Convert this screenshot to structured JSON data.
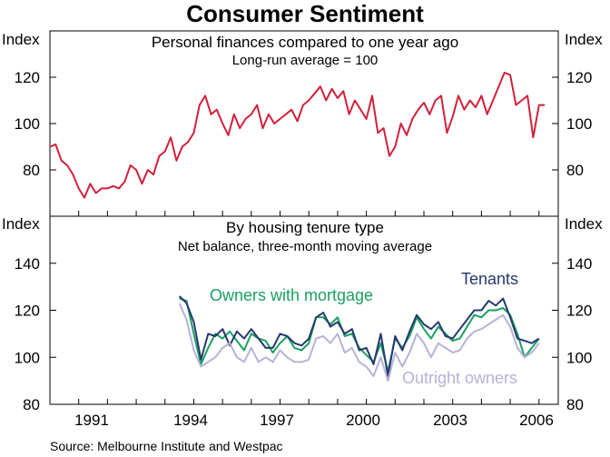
{
  "title": "Consumer Sentiment",
  "source": "Source: Melbourne Institute and Westpac",
  "x_ticks": [
    "1991",
    "1994",
    "1997",
    "2000",
    "2003",
    "2006"
  ],
  "colors": {
    "personal": "#d2203a",
    "owners_mortgage": "#1aa061",
    "tenants": "#25396e",
    "outright_owners": "#b6b2d8"
  },
  "chart_data": [
    {
      "type": "line",
      "panel": "top",
      "title": "Personal finances compared to one year ago",
      "subtitle": "Long-run average = 100",
      "ylabel_left": "Index",
      "ylabel_right": "Index",
      "ylim": [
        60,
        140
      ],
      "yticks": [
        80,
        100,
        120
      ],
      "xlim": [
        1989,
        2006.67
      ],
      "series": [
        {
          "name": "Personal finances compared to one year ago",
          "color": "#d2203a",
          "x": [
            1989.0,
            1989.2,
            1989.4,
            1989.6,
            1989.8,
            1990.0,
            1990.2,
            1990.4,
            1990.6,
            1990.8,
            1991.0,
            1991.2,
            1991.4,
            1991.6,
            1991.8,
            1992.0,
            1992.2,
            1992.4,
            1992.6,
            1992.8,
            1993.0,
            1993.2,
            1993.4,
            1993.6,
            1993.8,
            1994.0,
            1994.2,
            1994.4,
            1994.6,
            1994.8,
            1995.0,
            1995.2,
            1995.4,
            1995.6,
            1995.8,
            1996.0,
            1996.2,
            1996.4,
            1996.6,
            1996.8,
            1997.0,
            1997.2,
            1997.4,
            1997.6,
            1997.8,
            1998.0,
            1998.2,
            1998.4,
            1998.6,
            1998.8,
            1999.0,
            1999.2,
            1999.4,
            1999.6,
            1999.8,
            2000.0,
            2000.2,
            2000.4,
            2000.6,
            2000.8,
            2001.0,
            2001.2,
            2001.4,
            2001.6,
            2001.8,
            2002.0,
            2002.2,
            2002.4,
            2002.6,
            2002.8,
            2003.0,
            2003.2,
            2003.4,
            2003.6,
            2003.8,
            2004.0,
            2004.2,
            2004.4,
            2004.6,
            2004.8,
            2005.0,
            2005.2,
            2005.4,
            2005.6,
            2005.8,
            2006.0,
            2006.2
          ],
          "values": [
            90,
            91,
            84,
            82,
            78,
            72,
            68,
            74,
            70,
            72,
            72,
            73,
            72,
            75,
            82,
            80,
            74,
            80,
            78,
            86,
            88,
            94,
            84,
            90,
            92,
            96,
            108,
            112,
            104,
            106,
            100,
            95,
            104,
            98,
            102,
            104,
            108,
            98,
            104,
            100,
            102,
            104,
            106,
            101,
            108,
            110,
            113,
            116,
            110,
            115,
            111,
            114,
            104,
            110,
            106,
            102,
            112,
            96,
            98,
            86,
            90,
            100,
            95,
            102,
            106,
            109,
            104,
            110,
            112,
            96,
            103,
            112,
            106,
            110,
            107,
            112,
            104,
            110,
            116,
            122,
            121,
            108,
            110,
            112,
            94,
            108,
            108
          ]
        }
      ]
    },
    {
      "type": "line",
      "panel": "bottom",
      "title": "By housing tenure type",
      "subtitle": "Net balance, three-month moving average",
      "ylabel_left": "Index",
      "ylabel_right": "Index",
      "ylim": [
        80,
        160
      ],
      "yticks": [
        80,
        100,
        120,
        140
      ],
      "xlim": [
        1989,
        2006.67
      ],
      "series": [
        {
          "name": "Owners with mortgage",
          "color": "#1aa061",
          "x": [
            1993.5,
            1993.75,
            1994.0,
            1994.25,
            1994.5,
            1994.75,
            1995.0,
            1995.25,
            1995.5,
            1995.75,
            1996.0,
            1996.25,
            1996.5,
            1996.75,
            1997.0,
            1997.25,
            1997.5,
            1997.75,
            1998.0,
            1998.25,
            1998.5,
            1998.75,
            1999.0,
            1999.25,
            1999.5,
            1999.75,
            2000.0,
            2000.25,
            2000.5,
            2000.75,
            2001.0,
            2001.25,
            2001.5,
            2001.75,
            2002.0,
            2002.25,
            2002.5,
            2002.75,
            2003.0,
            2003.25,
            2003.5,
            2003.75,
            2004.0,
            2004.25,
            2004.5,
            2004.75,
            2005.0,
            2005.25,
            2005.5,
            2005.75,
            2006.0
          ],
          "values": [
            125,
            124,
            110,
            97,
            104,
            110,
            108,
            111,
            107,
            103,
            110,
            108,
            107,
            102,
            106,
            109,
            104,
            103,
            106,
            117,
            117,
            114,
            117,
            109,
            110,
            104,
            101,
            98,
            106,
            94,
            108,
            104,
            109,
            117,
            112,
            108,
            113,
            110,
            107,
            108,
            113,
            118,
            117,
            120,
            120,
            121,
            118,
            110,
            100,
            104,
            108
          ]
        },
        {
          "name": "Tenants",
          "color": "#25396e",
          "x": [
            1993.5,
            1993.75,
            1994.0,
            1994.25,
            1994.5,
            1994.75,
            1995.0,
            1995.25,
            1995.5,
            1995.75,
            1996.0,
            1996.25,
            1996.5,
            1996.75,
            1997.0,
            1997.25,
            1997.5,
            1997.75,
            1998.0,
            1998.25,
            1998.5,
            1998.75,
            1999.0,
            1999.25,
            1999.5,
            1999.75,
            2000.0,
            2000.25,
            2000.5,
            2000.75,
            2001.0,
            2001.25,
            2001.5,
            2001.75,
            2002.0,
            2002.25,
            2002.5,
            2002.75,
            2003.0,
            2003.25,
            2003.5,
            2003.75,
            2004.0,
            2004.25,
            2004.5,
            2004.75,
            2005.0,
            2005.25,
            2005.5,
            2005.75,
            2006.0
          ],
          "values": [
            126,
            123,
            115,
            99,
            110,
            109,
            112,
            105,
            111,
            108,
            112,
            108,
            104,
            104,
            110,
            109,
            106,
            105,
            108,
            117,
            119,
            113,
            115,
            110,
            112,
            103,
            104,
            97,
            110,
            92,
            109,
            103,
            111,
            118,
            114,
            112,
            115,
            109,
            108,
            112,
            116,
            120,
            120,
            124,
            122,
            125,
            117,
            108,
            107,
            106,
            108
          ]
        },
        {
          "name": "Outright owners",
          "color": "#b6b2d8",
          "x": [
            1993.5,
            1993.75,
            1994.0,
            1994.25,
            1994.5,
            1994.75,
            1995.0,
            1995.25,
            1995.5,
            1995.75,
            1996.0,
            1996.25,
            1996.5,
            1996.75,
            1997.0,
            1997.25,
            1997.5,
            1997.75,
            1998.0,
            1998.25,
            1998.5,
            1998.75,
            1999.0,
            1999.25,
            1999.5,
            1999.75,
            2000.0,
            2000.25,
            2000.5,
            2000.75,
            2001.0,
            2001.25,
            2001.5,
            2001.75,
            2002.0,
            2002.25,
            2002.5,
            2002.75,
            2003.0,
            2003.25,
            2003.5,
            2003.75,
            2004.0,
            2004.25,
            2004.5,
            2004.75,
            2005.0,
            2005.25,
            2005.5,
            2005.75,
            2006.0
          ],
          "values": [
            123,
            116,
            103,
            96,
            98,
            100,
            104,
            106,
            100,
            98,
            104,
            98,
            100,
            98,
            103,
            100,
            98,
            98,
            99,
            108,
            109,
            106,
            110,
            102,
            104,
            98,
            96,
            92,
            100,
            90,
            102,
            96,
            102,
            110,
            106,
            100,
            106,
            104,
            102,
            103,
            108,
            111,
            112,
            114,
            116,
            118,
            113,
            104,
            100,
            102,
            106
          ]
        }
      ],
      "labels": {
        "owners_mortgage": "Owners with mortgage",
        "tenants": "Tenants",
        "outright_owners": "Outright owners"
      }
    }
  ]
}
